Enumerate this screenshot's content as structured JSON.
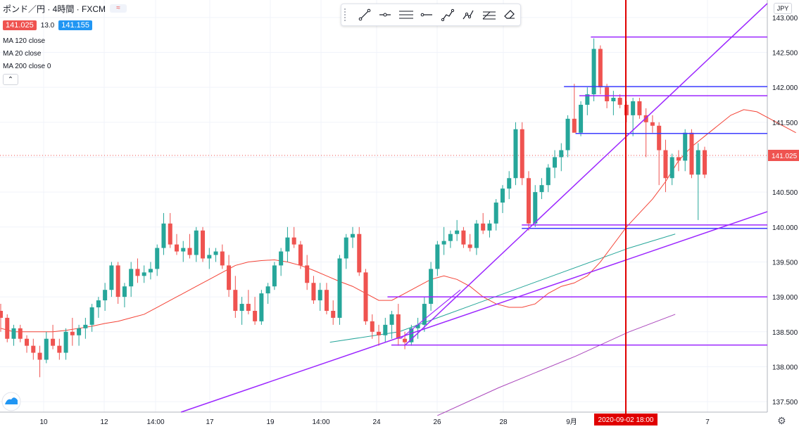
{
  "header": {
    "symbol": "ポンド／円 · 4時間 · FXCM",
    "bid": "141.025",
    "spread": "13.0",
    "ask": "141.155",
    "indicators": [
      "MA 120 close",
      "MA 20 close",
      "MA 200 close 0"
    ]
  },
  "toolbar": {
    "tools": [
      "trend-line-icon",
      "horizontal-ray-icon",
      "parallel-channel-icon",
      "horizontal-line-icon",
      "pitchfork-icon",
      "fib-icon",
      "gann-icon",
      "eraser-icon"
    ]
  },
  "price_axis": {
    "currency": "JPY",
    "current_price_label": "141.025",
    "ticks": [
      "143.000",
      "142.500",
      "142.000",
      "141.500",
      "141.000",
      "140.500",
      "140.000",
      "139.500",
      "139.000",
      "138.500",
      "138.000",
      "137.500"
    ]
  },
  "time_axis": {
    "ticks": [
      "10",
      "12",
      "14:00",
      "17",
      "19",
      "14:00",
      "24",
      "26",
      "28",
      "9月",
      "7"
    ],
    "crosshair_label": "2020-09-02  18:00"
  },
  "chart_data": {
    "type": "candlestick",
    "ylim": [
      137.35,
      143.25
    ],
    "y_ticks": [
      137.5,
      138.0,
      138.5,
      139.0,
      139.5,
      140.0,
      140.5,
      141.0,
      141.5,
      142.0,
      142.5,
      143.0
    ],
    "current_price": 141.025,
    "colors": {
      "up": "#26a69a",
      "down": "#ef5350",
      "ma20": "#f44336",
      "ma120": "#26a69a",
      "ma200": "#ab47bc",
      "drawing": "#9c27ff",
      "hline": "#3d3dff",
      "crosshair": "#e00000"
    },
    "candles": [
      [
        138.8,
        138.9,
        138.5,
        138.7
      ],
      [
        138.7,
        138.75,
        138.35,
        138.4
      ],
      [
        138.4,
        138.6,
        138.3,
        138.55
      ],
      [
        138.55,
        138.6,
        138.35,
        138.4
      ],
      [
        138.4,
        138.45,
        138.2,
        138.3
      ],
      [
        138.3,
        138.4,
        138.1,
        138.2
      ],
      [
        138.2,
        138.3,
        137.85,
        138.1
      ],
      [
        138.1,
        138.5,
        138.05,
        138.4
      ],
      [
        138.4,
        138.6,
        138.25,
        138.3
      ],
      [
        138.3,
        138.4,
        138.1,
        138.2
      ],
      [
        138.2,
        138.55,
        138.1,
        138.5
      ],
      [
        138.5,
        138.7,
        138.3,
        138.45
      ],
      [
        138.45,
        138.6,
        138.3,
        138.55
      ],
      [
        138.55,
        138.7,
        138.4,
        138.6
      ],
      [
        138.6,
        138.9,
        138.5,
        138.85
      ],
      [
        138.85,
        139.0,
        138.7,
        138.95
      ],
      [
        138.95,
        139.2,
        138.8,
        139.1
      ],
      [
        139.1,
        139.5,
        139.0,
        139.45
      ],
      [
        139.45,
        139.5,
        138.9,
        139.0
      ],
      [
        139.0,
        139.2,
        138.85,
        139.15
      ],
      [
        139.15,
        139.5,
        139.0,
        139.4
      ],
      [
        139.4,
        139.55,
        139.2,
        139.3
      ],
      [
        139.3,
        139.45,
        139.2,
        139.35
      ],
      [
        139.35,
        139.5,
        139.25,
        139.4
      ],
      [
        139.4,
        139.75,
        139.3,
        139.7
      ],
      [
        139.7,
        140.2,
        139.6,
        140.05
      ],
      [
        140.05,
        140.2,
        139.7,
        139.75
      ],
      [
        139.75,
        139.9,
        139.6,
        139.65
      ],
      [
        139.65,
        139.8,
        139.5,
        139.7
      ],
      [
        139.7,
        139.9,
        139.55,
        139.6
      ],
      [
        139.6,
        140.0,
        139.5,
        139.95
      ],
      [
        139.95,
        140.0,
        139.5,
        139.55
      ],
      [
        139.55,
        139.7,
        139.4,
        139.6
      ],
      [
        139.6,
        139.7,
        139.5,
        139.65
      ],
      [
        139.65,
        139.75,
        139.4,
        139.45
      ],
      [
        139.45,
        139.6,
        139.0,
        139.1
      ],
      [
        139.1,
        139.3,
        138.7,
        138.8
      ],
      [
        138.8,
        139.0,
        138.6,
        138.9
      ],
      [
        138.9,
        139.1,
        138.75,
        138.8
      ],
      [
        138.8,
        139.0,
        138.6,
        138.65
      ],
      [
        138.65,
        139.1,
        138.6,
        139.05
      ],
      [
        139.05,
        139.2,
        138.9,
        139.15
      ],
      [
        139.15,
        139.5,
        139.1,
        139.45
      ],
      [
        139.45,
        139.7,
        139.3,
        139.65
      ],
      [
        139.65,
        140.0,
        139.5,
        139.85
      ],
      [
        139.85,
        140.0,
        139.7,
        139.75
      ],
      [
        139.75,
        139.8,
        139.4,
        139.45
      ],
      [
        139.45,
        139.6,
        139.1,
        139.2
      ],
      [
        139.2,
        139.3,
        138.9,
        138.95
      ],
      [
        138.95,
        139.2,
        138.8,
        139.1
      ],
      [
        139.1,
        139.2,
        138.75,
        138.8
      ],
      [
        138.8,
        138.95,
        138.6,
        138.7
      ],
      [
        138.7,
        139.6,
        138.6,
        139.55
      ],
      [
        139.55,
        139.9,
        139.4,
        139.85
      ],
      [
        139.85,
        140.0,
        139.7,
        139.9
      ],
      [
        139.9,
        140.0,
        139.3,
        139.35
      ],
      [
        139.35,
        139.4,
        138.6,
        138.65
      ],
      [
        138.65,
        138.75,
        138.4,
        138.5
      ],
      [
        138.5,
        138.6,
        138.3,
        138.45
      ],
      [
        138.45,
        138.7,
        138.35,
        138.6
      ],
      [
        138.6,
        138.8,
        138.4,
        138.75
      ],
      [
        138.75,
        138.9,
        138.3,
        138.4
      ],
      [
        138.4,
        138.5,
        138.25,
        138.35
      ],
      [
        138.35,
        138.6,
        138.3,
        138.55
      ],
      [
        138.55,
        138.7,
        138.4,
        138.6
      ],
      [
        138.6,
        139.0,
        138.5,
        138.9
      ],
      [
        138.9,
        139.5,
        138.8,
        139.4
      ],
      [
        139.4,
        139.8,
        139.3,
        139.75
      ],
      [
        139.75,
        140.0,
        139.6,
        139.8
      ],
      [
        139.8,
        139.95,
        139.7,
        139.9
      ],
      [
        139.9,
        140.1,
        139.8,
        139.95
      ],
      [
        139.95,
        140.0,
        139.7,
        139.75
      ],
      [
        139.75,
        139.9,
        139.65,
        139.7
      ],
      [
        139.7,
        140.1,
        139.6,
        140.05
      ],
      [
        140.05,
        140.2,
        139.9,
        139.95
      ],
      [
        139.95,
        140.1,
        139.85,
        140.05
      ],
      [
        140.05,
        140.4,
        139.95,
        140.35
      ],
      [
        140.35,
        140.6,
        140.2,
        140.55
      ],
      [
        140.55,
        140.8,
        140.4,
        140.7
      ],
      [
        140.7,
        141.5,
        140.6,
        141.4
      ],
      [
        141.4,
        141.5,
        140.6,
        140.7
      ],
      [
        140.7,
        140.8,
        139.95,
        140.05
      ],
      [
        140.05,
        140.6,
        140.0,
        140.5
      ],
      [
        140.5,
        140.7,
        140.4,
        140.6
      ],
      [
        140.6,
        140.9,
        140.5,
        140.85
      ],
      [
        140.85,
        141.1,
        140.7,
        141.0
      ],
      [
        141.0,
        141.2,
        140.8,
        141.1
      ],
      [
        141.1,
        141.6,
        141.0,
        141.55
      ],
      [
        141.55,
        142.05,
        141.4,
        141.35
      ],
      [
        141.35,
        141.8,
        141.3,
        141.75
      ],
      [
        141.75,
        142.0,
        141.6,
        141.9
      ],
      [
        141.9,
        142.7,
        141.8,
        142.55
      ],
      [
        142.55,
        142.6,
        141.9,
        142.0
      ],
      [
        142.0,
        142.05,
        141.7,
        141.8
      ],
      [
        141.8,
        141.95,
        141.6,
        141.85
      ],
      [
        141.85,
        141.9,
        141.7,
        141.75
      ],
      [
        141.75,
        141.8,
        141.5,
        141.6
      ],
      [
        141.6,
        141.85,
        141.3,
        141.8
      ],
      [
        141.8,
        141.85,
        141.55,
        141.6
      ],
      [
        141.6,
        141.7,
        141.0,
        141.5
      ],
      [
        141.5,
        141.6,
        141.35,
        141.45
      ],
      [
        141.45,
        141.5,
        140.6,
        141.1
      ],
      [
        141.1,
        141.25,
        140.5,
        140.7
      ],
      [
        140.7,
        141.05,
        140.6,
        141.0
      ],
      [
        141.0,
        141.1,
        140.8,
        140.95
      ],
      [
        140.95,
        141.4,
        140.8,
        141.35
      ],
      [
        141.35,
        141.4,
        140.7,
        140.75
      ],
      [
        140.75,
        141.2,
        140.1,
        141.1
      ],
      [
        141.1,
        141.15,
        140.7,
        140.75
      ]
    ],
    "ma20": [
      138.55,
      138.5,
      138.5,
      138.5,
      138.5,
      138.52,
      138.55,
      138.58,
      138.62,
      138.65,
      138.7,
      138.75,
      138.85,
      138.95,
      139.05,
      139.15,
      139.25,
      139.35,
      139.45,
      139.5,
      139.52,
      139.53,
      139.5,
      139.45,
      139.38,
      139.3,
      139.22,
      139.15,
      139.05,
      138.95,
      138.95,
      139.05,
      139.15,
      139.25,
      139.3,
      139.25,
      139.15,
      139.0,
      138.9,
      138.85,
      138.85,
      138.9,
      139.05,
      139.15,
      139.2,
      139.3,
      139.5,
      139.75,
      140.0,
      140.2,
      140.4,
      140.65,
      140.95,
      141.15,
      141.3,
      141.45,
      141.6,
      141.68,
      141.65,
      141.55,
      141.45,
      141.35
    ],
    "ma20_start": 0,
    "ma20_step": 2,
    "ma120": [
      [
        0.43,
        138.35
      ],
      [
        0.52,
        138.5
      ],
      [
        0.62,
        138.9
      ],
      [
        0.72,
        139.3
      ],
      [
        0.82,
        139.7
      ],
      [
        0.88,
        139.9
      ]
    ],
    "ma200": [
      [
        0.57,
        137.3
      ],
      [
        0.65,
        137.7
      ],
      [
        0.75,
        138.15
      ],
      [
        0.82,
        138.5
      ],
      [
        0.88,
        138.75
      ]
    ]
  }
}
